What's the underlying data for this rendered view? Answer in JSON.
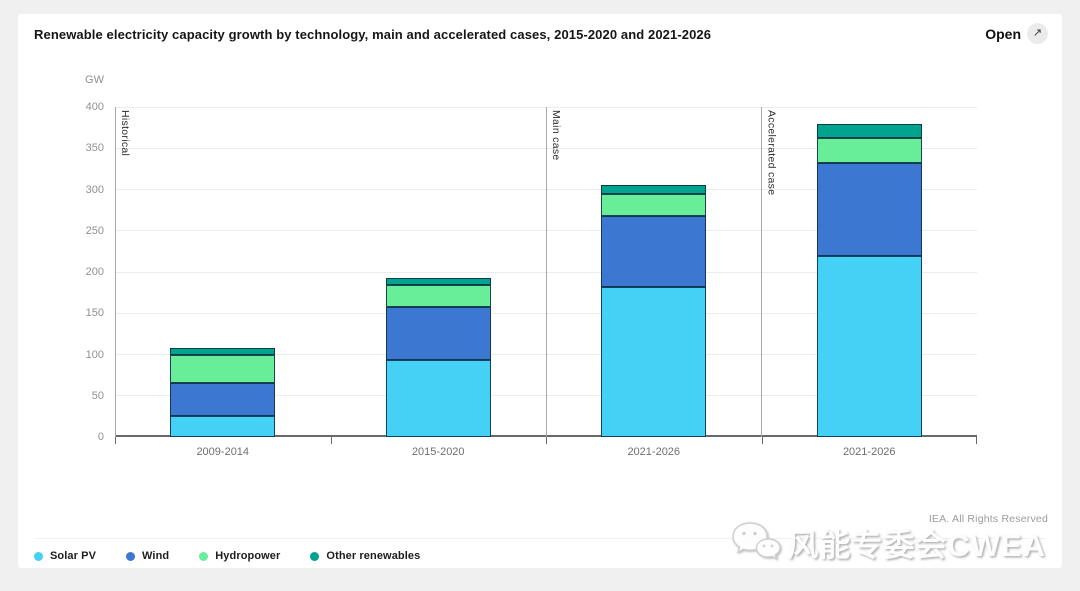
{
  "header": {
    "title": "Renewable electricity capacity growth by technology, main and accelerated cases, 2015-2020 and 2021-2026",
    "open_label": "Open",
    "open_icon": "↗"
  },
  "footer": {
    "rights": "IEA. All Rights Reserved"
  },
  "watermark": {
    "text": "风能专委会CWEA",
    "logo": "wechat-logo"
  },
  "chart_data": {
    "type": "bar",
    "stacked": true,
    "unit": "GW",
    "categories": [
      "2009-2014",
      "2015-2020",
      "2021-2026",
      "2021-2026"
    ],
    "series": [
      {
        "name": "Solar PV",
        "color": "#45d0f6",
        "values": [
          26,
          93,
          182,
          220
        ]
      },
      {
        "name": "Wind",
        "color": "#3c78d2",
        "values": [
          39,
          64,
          86,
          112
        ]
      },
      {
        "name": "Hydropower",
        "color": "#68ee98",
        "values": [
          35,
          27,
          26,
          30
        ]
      },
      {
        "name": "Other renewables",
        "color": "#00a38e",
        "values": [
          8,
          9,
          11,
          18
        ]
      }
    ],
    "totals": [
      108,
      193,
      305,
      380
    ],
    "case_groups": [
      {
        "label": "Historical",
        "start": 0,
        "end": 1
      },
      {
        "label": "Main case",
        "start": 2,
        "end": 2
      },
      {
        "label": "Accelerated case",
        "start": 3,
        "end": 3
      }
    ],
    "ylim": [
      0,
      400
    ],
    "yticks": [
      0,
      50,
      100,
      150,
      200,
      250,
      300,
      350,
      400
    ],
    "grid": true,
    "legend_position": "bottom"
  }
}
